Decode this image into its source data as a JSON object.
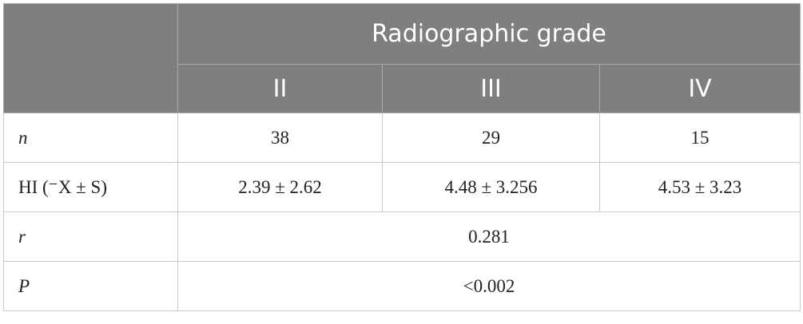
{
  "table": {
    "header": {
      "title": "Radiographic grade",
      "columns": [
        "II",
        "III",
        "IV"
      ]
    },
    "rows": [
      [
        "n",
        "38",
        "29",
        "15"
      ],
      [
        "HI (⁻X ± S)",
        "2.39 ± 2.62",
        "4.48 ± 3.256",
        "4.53 ± 3.23"
      ],
      [
        "r",
        "0.281"
      ],
      [
        "P",
        "<0.002"
      ]
    ]
  }
}
